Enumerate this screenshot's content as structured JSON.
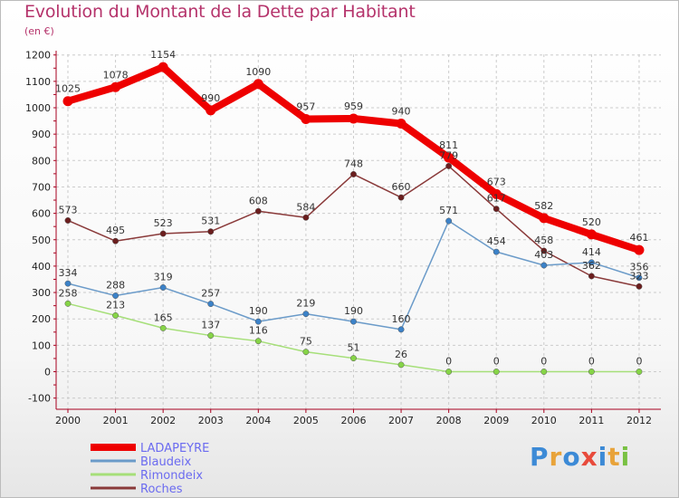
{
  "header": {
    "title": "Evolution du Montant de la Dette par Habitant",
    "subtitle": "(en €)"
  },
  "logo": {
    "text": "Proxiti",
    "colors": [
      "#3c8ad6",
      "#e8a33a",
      "#3c8ad6",
      "#e84b3c",
      "#3c8ad6",
      "#e8a33a",
      "#79c143"
    ]
  },
  "colors": {
    "title": "#b5336b",
    "axis": "#a8001f",
    "grid": "#cccccc",
    "legend_text": "#6b6bf0"
  },
  "chart_data": {
    "type": "line",
    "title": "Evolution du Montant de la Dette par Habitant",
    "ylabel": "(en €)",
    "xlabel": "",
    "x": [
      "2000",
      "2001",
      "2002",
      "2003",
      "2004",
      "2005",
      "2006",
      "2007",
      "2008",
      "2009",
      "2010",
      "2011",
      "2012"
    ],
    "ylim": [
      -100,
      1200
    ],
    "yticks": [
      "-100",
      "0",
      "100",
      "200",
      "300",
      "400",
      "500",
      "600",
      "700",
      "800",
      "900",
      "1000",
      "1100",
      "1200"
    ],
    "grid": true,
    "legend_position": "bottom-left",
    "series": [
      {
        "name": "LADAPEYRE",
        "color": "#ee0000",
        "marker": "#ee0000",
        "values": [
          1025,
          1078,
          1154,
          990,
          1090,
          957,
          959,
          940,
          811,
          673,
          582,
          520,
          461
        ]
      },
      {
        "name": "Blaudeix",
        "color": "#6b9bc9",
        "marker": "#3c82c8",
        "values": [
          334,
          288,
          319,
          257,
          190,
          219,
          190,
          160,
          571,
          454,
          403,
          414,
          356
        ]
      },
      {
        "name": "Rimondeix",
        "color": "#a6df79",
        "marker": "#86d447",
        "values": [
          258,
          213,
          165,
          137,
          116,
          75,
          51,
          26,
          0,
          0,
          0,
          0,
          0
        ]
      },
      {
        "name": "Roches",
        "color": "#8a3a3a",
        "marker": "#6b1e1e",
        "values": [
          573,
          495,
          523,
          531,
          608,
          584,
          748,
          660,
          779,
          617,
          458,
          362,
          323
        ]
      }
    ]
  }
}
